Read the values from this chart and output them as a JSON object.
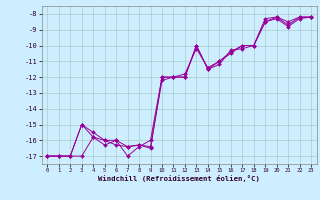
{
  "xlabel": "Windchill (Refroidissement éolien,°C)",
  "background_color": "#cceeff",
  "grid_color": "#aacccc",
  "line_color": "#990099",
  "yticks": [
    -17,
    -16,
    -15,
    -14,
    -13,
    -12,
    -11,
    -10,
    -9,
    -8
  ],
  "xticks": [
    0,
    1,
    2,
    3,
    4,
    5,
    6,
    7,
    8,
    9,
    10,
    11,
    12,
    13,
    14,
    15,
    16,
    17,
    18,
    19,
    20,
    21,
    22,
    23
  ],
  "line1_x": [
    0,
    1,
    2,
    3,
    4,
    5,
    6,
    7,
    8,
    9,
    10,
    11,
    12,
    13,
    14,
    15,
    16,
    17,
    18,
    19,
    20,
    21,
    22,
    23
  ],
  "line1_y": [
    -17,
    -17,
    -17,
    -15,
    -15.8,
    -16.3,
    -16,
    -16.4,
    -16.3,
    -16.5,
    -12,
    -12,
    -12,
    -10,
    -11.5,
    -11.2,
    -10.3,
    -10.2,
    -10.0,
    -8.5,
    -8.2,
    -8.5,
    -8.2,
    -8.2
  ],
  "line2_x": [
    0,
    1,
    2,
    3,
    4,
    5,
    6,
    7,
    8,
    9,
    10,
    11,
    12,
    13,
    14,
    15,
    16,
    17,
    18,
    19,
    20,
    21,
    22,
    23
  ],
  "line2_y": [
    -17,
    -17,
    -17,
    -17,
    -15.8,
    -16.0,
    -16.0,
    -17,
    -16.4,
    -16,
    -12,
    -12.0,
    -11.8,
    -10.2,
    -11.4,
    -11.0,
    -10.4,
    -10.0,
    -10.0,
    -8.5,
    -8.3,
    -8.8,
    -8.3,
    -8.2
  ],
  "line3_x": [
    0,
    1,
    2,
    3,
    4,
    5,
    6,
    7,
    8,
    9,
    10,
    11,
    12,
    13,
    14,
    15,
    16,
    17,
    18,
    19,
    20,
    21,
    22,
    23
  ],
  "line3_y": [
    -17,
    -17,
    -17,
    -15,
    -15.5,
    -16.0,
    -16.3,
    -16.4,
    -16.3,
    -16.4,
    -12.2,
    -12.0,
    -12.0,
    -10.0,
    -11.5,
    -11.0,
    -10.5,
    -10.0,
    -10.0,
    -8.3,
    -8.2,
    -8.7,
    -8.2,
    -8.2
  ]
}
